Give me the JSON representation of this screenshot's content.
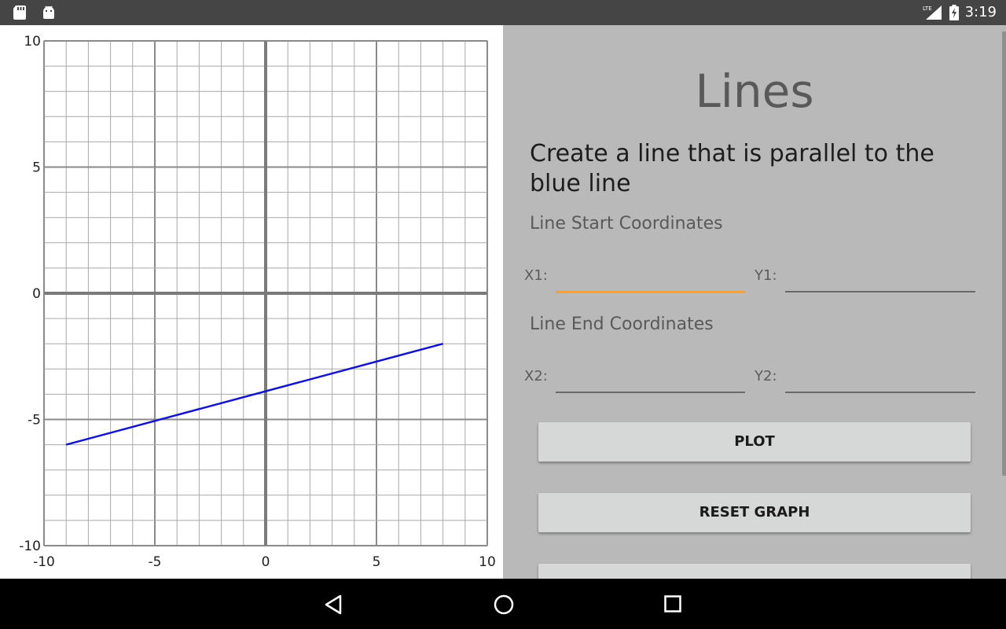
{
  "status_bar": {
    "left_icons": [
      "sd-card-icon",
      "android-icon"
    ],
    "network_label": "LTE",
    "time": "3:19"
  },
  "graph": {
    "tick_labels_x": [
      "-10",
      "-5",
      "0",
      "5",
      "10"
    ],
    "tick_labels_y": [
      "10",
      "5",
      "0",
      "-5",
      "-10"
    ]
  },
  "chart_data": {
    "type": "line",
    "xlim": [
      -10,
      10
    ],
    "ylim": [
      -10,
      10
    ],
    "grid": true,
    "series": [
      {
        "color": "#1515c8",
        "x": [
          -9,
          8
        ],
        "y": [
          -6,
          -2
        ]
      }
    ]
  },
  "panel": {
    "title": "Lines",
    "prompt": "Create a line that is parallel to the blue line",
    "start_section": "Line Start Coordinates",
    "end_section": "Line End Coordinates",
    "x1_label": "X1:",
    "y1_label": "Y1:",
    "x2_label": "X2:",
    "y2_label": "Y2:",
    "x1_value": "",
    "y1_value": "",
    "x2_value": "",
    "y2_value": "",
    "plot_button": "PLOT",
    "reset_button": "RESET GRAPH",
    "accent_color": "#f2a03a"
  },
  "nav_bar": {
    "icons": [
      "back-icon",
      "home-icon",
      "recents-icon"
    ]
  }
}
